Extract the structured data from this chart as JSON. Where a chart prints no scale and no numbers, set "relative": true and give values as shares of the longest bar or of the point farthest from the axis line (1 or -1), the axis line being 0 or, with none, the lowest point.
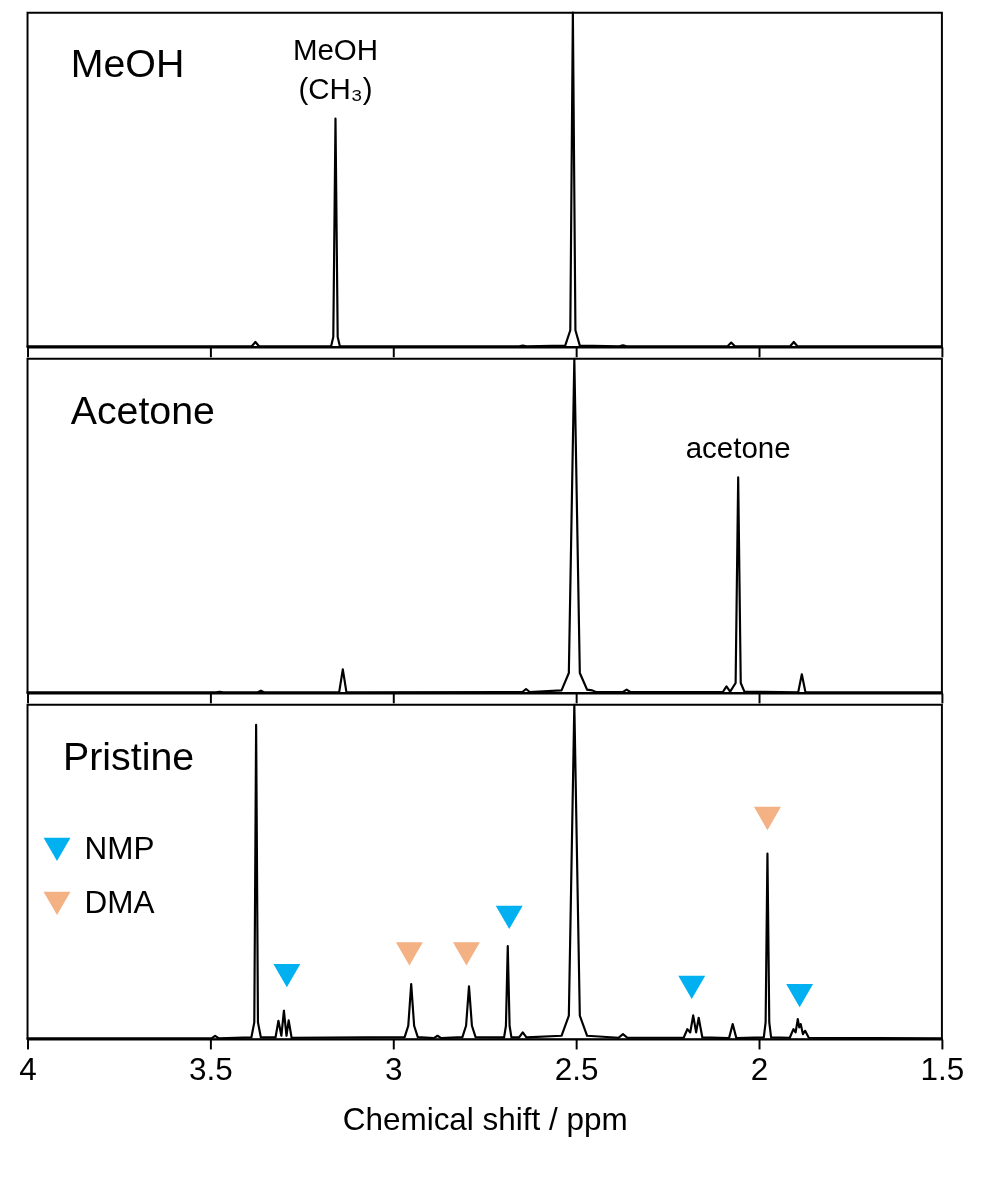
{
  "chart_data": [
    {
      "type": "line",
      "title": "MeOH",
      "relative": true,
      "xlim": [
        4,
        1.5
      ],
      "xticks": [
        4,
        3.5,
        3,
        2.5,
        2,
        1.5
      ],
      "tick_labels": false,
      "line_style": "solid",
      "annotations": [
        {
          "text": "MeOH\n(CH₃)",
          "x": 3.158,
          "y": 0.683
        }
      ],
      "series": [
        {
          "color": "#000000",
          "x": [
            1.5,
            1.895,
            1.905,
            1.915,
            2.066,
            2.076,
            2.086,
            2.362,
            2.372,
            2.382,
            2.49,
            2.502,
            2.509,
            2.516,
            2.53,
            2.636,
            2.646,
            2.656,
            3.146,
            3.152,
            3.158,
            3.164,
            3.17,
            3.367,
            3.377,
            3.387,
            4
          ],
          "values": [
            0.002,
            0.002,
            0.015,
            0.002,
            0.002,
            0.013,
            0.002,
            0.002,
            0.005,
            0.002,
            0.004,
            0.05,
            1,
            0.05,
            0.004,
            0.002,
            0.004,
            0.002,
            0.002,
            0.03,
            0.683,
            0.03,
            0.002,
            0.002,
            0.015,
            0.002,
            0.002
          ]
        }
      ]
    },
    {
      "type": "line",
      "title": "Acetone",
      "relative": true,
      "xlim": [
        4,
        1.5
      ],
      "xticks": [
        4,
        3.5,
        3,
        2.5,
        2,
        1.5
      ],
      "tick_labels": false,
      "line_style": "solid",
      "annotations": [
        {
          "text": "acetone",
          "x": 2.057,
          "y": 0.645
        }
      ],
      "series": [
        {
          "color": "#000000",
          "x": [
            1.5,
            1.873,
            1.883,
            1.893,
            2.04,
            2.05,
            2.057,
            2.064,
            2.079,
            2.089,
            2.099,
            2.352,
            2.362,
            2.372,
            2.446,
            2.456,
            2.47,
            2.49,
            2.505,
            2.52,
            2.54,
            2.627,
            2.637,
            2.647,
            3.128,
            3.138,
            3.148,
            3.352,
            3.362,
            3.372,
            3.465,
            3.475,
            3.485,
            4
          ],
          "values": [
            0.002,
            0.002,
            0.056,
            0.002,
            0.004,
            0.03,
            0.645,
            0.03,
            0.004,
            0.02,
            0.003,
            0.003,
            0.01,
            0.003,
            0.003,
            0.008,
            0.01,
            0.06,
            1,
            0.06,
            0.008,
            0.003,
            0.012,
            0.003,
            0.002,
            0.071,
            0.002,
            0.002,
            0.007,
            0.002,
            0.002,
            0.004,
            0.002,
            0.002
          ]
        }
      ]
    },
    {
      "type": "line",
      "title": "Pristine",
      "relative": true,
      "xlim": [
        4,
        1.5
      ],
      "xticks": [
        4,
        3.5,
        3,
        2.5,
        2,
        1.5
      ],
      "tick_labels": "x",
      "xlabel": "Chemical shift / ppm",
      "line_style": "solid",
      "legend": "left",
      "series": [
        {
          "color": "#000000",
          "x": [
            1.5,
            1.864,
            1.874,
            1.88,
            1.886,
            1.89,
            1.894,
            1.9,
            1.906,
            1.916,
            1.967,
            1.972,
            1.977,
            1.982,
            1.987,
            2.062,
            2.072,
            2.082,
            2.155,
            2.165,
            2.172,
            2.18,
            2.188,
            2.196,
            2.206,
            2.36,
            2.372,
            2.384,
            2.47,
            2.49,
            2.505,
            2.52,
            2.54,
            2.636,
            2.646,
            2.656,
            2.677,
            2.682,
            2.687,
            2.692,
            2.697,
            2.775,
            2.785,
            2.793,
            2.801,
            2.811,
            2.869,
            2.879,
            2.889,
            2.933,
            2.943,
            2.951,
            2.959,
            2.969,
            3.278,
            3.286,
            3.292,
            3.299,
            3.306,
            3.314,
            3.322,
            3.362,
            3.37,
            3.375,
            3.38,
            3.388,
            3.477,
            3.487,
            3.497,
            4
          ],
          "values": [
            0.002,
            0.004,
            0.025,
            0.015,
            0.045,
            0.035,
            0.06,
            0.02,
            0.03,
            0.004,
            0.005,
            0.05,
            0.555,
            0.05,
            0.005,
            0.003,
            0.045,
            0.003,
            0.005,
            0.064,
            0.02,
            0.071,
            0.02,
            0.03,
            0.004,
            0.004,
            0.015,
            0.004,
            0.01,
            0.07,
            1,
            0.07,
            0.01,
            0.005,
            0.02,
            0.005,
            0.005,
            0.04,
            0.278,
            0.04,
            0.005,
            0.006,
            0.04,
            0.158,
            0.04,
            0.006,
            0.003,
            0.01,
            0.003,
            0.006,
            0.04,
            0.165,
            0.04,
            0.006,
            0.004,
            0.056,
            0.01,
            0.085,
            0.01,
            0.055,
            0.005,
            0.005,
            0.05,
            0.94,
            0.05,
            0.005,
            0.002,
            0.01,
            0.002,
            0.002
          ]
        },
        {
          "type": "scatter",
          "name": "NMP",
          "color": "#00b0f0",
          "marker": "triangle",
          "x": [
            3.291,
            2.683,
            2.184,
            1.889
          ],
          "values": [
            0.19,
            0.364,
            0.155,
            0.13
          ]
        },
        {
          "type": "scatter",
          "name": "DMA",
          "color": "#f4b183",
          "marker": "triangle",
          "x": [
            2.956,
            2.8,
            1.977
          ],
          "values": [
            0.255,
            0.255,
            0.66
          ]
        }
      ]
    }
  ]
}
